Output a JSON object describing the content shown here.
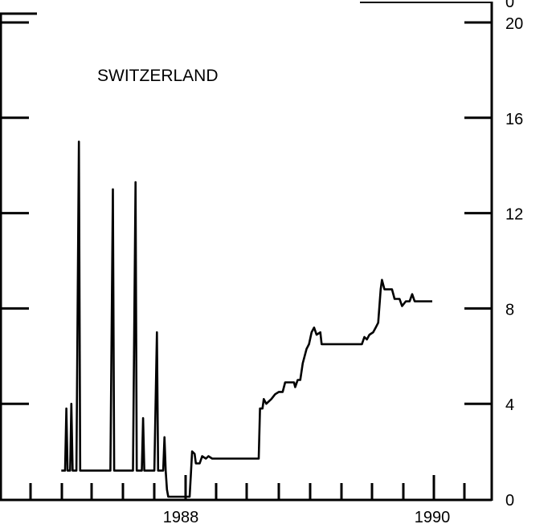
{
  "chart_data": {
    "type": "line",
    "title": "SWITZERLAND",
    "xlabel": "",
    "ylabel": "",
    "top_right_tick_label": "0",
    "x_tick_labels": [
      "1988",
      "1990"
    ],
    "x_year_marks": [
      1988,
      1990
    ],
    "ylim": [
      0,
      20
    ],
    "yticks_right": [
      0,
      4,
      8,
      12,
      16,
      20
    ],
    "yticks_left": [
      0,
      4,
      8,
      12,
      16,
      20
    ],
    "grid": false,
    "series": [
      {
        "points": [
          [
            1987.05,
            1.2
          ],
          [
            1987.08,
            1.2
          ],
          [
            1987.09,
            3.8
          ],
          [
            1987.1,
            1.2
          ],
          [
            1987.12,
            1.2
          ],
          [
            1987.13,
            4.0
          ],
          [
            1987.14,
            1.2
          ],
          [
            1987.17,
            1.2
          ],
          [
            1987.19,
            15.0
          ],
          [
            1987.2,
            1.2
          ],
          [
            1987.44,
            1.2
          ],
          [
            1987.46,
            13.0
          ],
          [
            1987.47,
            1.2
          ],
          [
            1987.62,
            1.2
          ],
          [
            1987.64,
            13.3
          ],
          [
            1987.65,
            1.2
          ],
          [
            1987.69,
            1.2
          ],
          [
            1987.7,
            3.4
          ],
          [
            1987.71,
            1.2
          ],
          [
            1987.79,
            1.2
          ],
          [
            1987.81,
            7.0
          ],
          [
            1987.82,
            1.2
          ],
          [
            1987.86,
            1.2
          ],
          [
            1987.87,
            2.6
          ],
          [
            1987.88,
            1.2
          ],
          [
            1987.89,
            0.4
          ],
          [
            1987.9,
            0.1
          ],
          [
            1988.07,
            0.1
          ],
          [
            1988.08,
            1.0
          ],
          [
            1988.09,
            2.0
          ],
          [
            1988.11,
            1.9
          ],
          [
            1988.12,
            1.5
          ],
          [
            1988.15,
            1.5
          ],
          [
            1988.17,
            1.8
          ],
          [
            1988.2,
            1.7
          ],
          [
            1988.22,
            1.8
          ],
          [
            1988.25,
            1.7
          ],
          [
            1988.4,
            1.7
          ],
          [
            1988.5,
            1.7
          ],
          [
            1988.62,
            1.7
          ],
          [
            1988.63,
            3.8
          ],
          [
            1988.65,
            3.8
          ],
          [
            1988.66,
            4.2
          ],
          [
            1988.68,
            4.0
          ],
          [
            1988.72,
            4.2
          ],
          [
            1988.75,
            4.4
          ],
          [
            1988.78,
            4.5
          ],
          [
            1988.81,
            4.5
          ],
          [
            1988.83,
            4.9
          ],
          [
            1988.9,
            4.9
          ],
          [
            1988.91,
            4.7
          ],
          [
            1988.93,
            5.0
          ],
          [
            1988.95,
            5.0
          ],
          [
            1988.97,
            5.7
          ],
          [
            1989.0,
            6.3
          ],
          [
            1989.02,
            6.5
          ],
          [
            1989.04,
            7.0
          ],
          [
            1989.06,
            7.2
          ],
          [
            1989.08,
            6.9
          ],
          [
            1989.11,
            7.0
          ],
          [
            1989.12,
            6.5
          ],
          [
            1989.3,
            6.5
          ],
          [
            1989.44,
            6.5
          ],
          [
            1989.46,
            6.8
          ],
          [
            1989.48,
            6.7
          ],
          [
            1989.5,
            6.9
          ],
          [
            1989.53,
            7.0
          ],
          [
            1989.55,
            7.2
          ],
          [
            1989.57,
            7.4
          ],
          [
            1989.59,
            8.8
          ],
          [
            1989.6,
            9.2
          ],
          [
            1989.62,
            8.8
          ],
          [
            1989.68,
            8.8
          ],
          [
            1989.7,
            8.4
          ],
          [
            1989.74,
            8.4
          ],
          [
            1989.76,
            8.1
          ],
          [
            1989.79,
            8.3
          ],
          [
            1989.82,
            8.3
          ],
          [
            1989.84,
            8.6
          ],
          [
            1989.86,
            8.3
          ],
          [
            1990.0,
            8.3
          ]
        ]
      }
    ]
  }
}
